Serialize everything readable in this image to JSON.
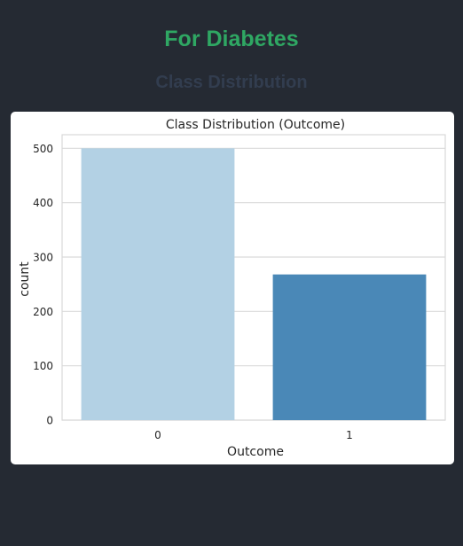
{
  "page": {
    "title": "For Diabetes",
    "section_title": "Class Distribution"
  },
  "chart_data": {
    "type": "bar",
    "title": "Class Distribution (Outcome)",
    "xlabel": "Outcome",
    "ylabel": "count",
    "categories": [
      "0",
      "1"
    ],
    "values": [
      500,
      268
    ],
    "ylim": [
      0,
      525
    ],
    "yticks": [
      0,
      100,
      200,
      300,
      400,
      500
    ],
    "grid": true,
    "colors": [
      "#b3d1e4",
      "#4a88b7"
    ]
  }
}
